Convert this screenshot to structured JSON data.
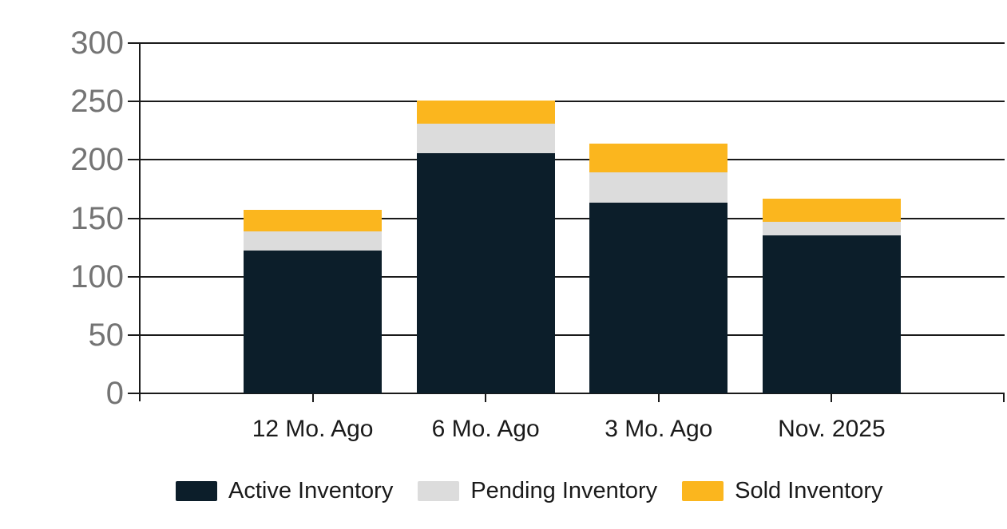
{
  "chart_data": {
    "type": "bar",
    "stacked": true,
    "title": "",
    "xlabel": "",
    "ylabel": "",
    "categories": [
      "12 Mo. Ago",
      "6 Mo. Ago",
      "3 Mo. Ago",
      "Nov. 2025"
    ],
    "series": [
      {
        "name": "Active Inventory",
        "color": "#0c1e2a",
        "values": [
          122,
          206,
          163,
          135
        ]
      },
      {
        "name": "Pending Inventory",
        "color": "#dcdcdc",
        "values": [
          17,
          25,
          26,
          12
        ]
      },
      {
        "name": "Sold Inventory",
        "color": "#fbb61e",
        "values": [
          18,
          20,
          25,
          20
        ]
      }
    ],
    "ylim": [
      0,
      300
    ],
    "ytick_interval": 50,
    "ytick_labels": [
      "0",
      "50",
      "100",
      "150",
      "200",
      "250",
      "300"
    ],
    "grid": true,
    "legend_position": "bottom"
  },
  "colors": {
    "background": "#ffffff",
    "axis_line": "#1a1a1a",
    "gridline": "#1a1a1a",
    "y_tick_label_text": "#747474",
    "x_tick_label_text": "#1a1a1a",
    "legend_text": "#1a1a1a"
  }
}
